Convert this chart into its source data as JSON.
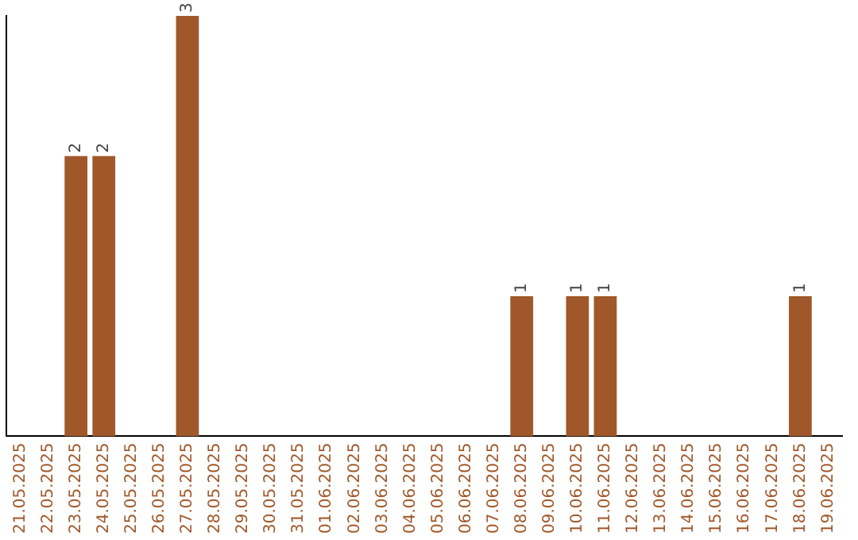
{
  "chart_data": {
    "type": "bar",
    "categories": [
      "21.05.2025",
      "22.05.2025",
      "23.05.2025",
      "24.05.2025",
      "25.05.2025",
      "26.05.2025",
      "27.05.2025",
      "28.05.2025",
      "29.05.2025",
      "30.05.2025",
      "31.05.2025",
      "01.06.2025",
      "02.06.2025",
      "03.06.2025",
      "04.06.2025",
      "05.06.2025",
      "06.06.2025",
      "07.06.2025",
      "08.06.2025",
      "09.06.2025",
      "10.06.2025",
      "11.06.2025",
      "12.06.2025",
      "13.06.2025",
      "14.06.2025",
      "15.06.2025",
      "16.06.2025",
      "17.06.2025",
      "18.06.2025",
      "19.06.2025"
    ],
    "values": [
      0,
      0,
      2,
      2,
      0,
      0,
      3,
      0,
      0,
      0,
      0,
      0,
      0,
      0,
      0,
      0,
      0,
      0,
      1,
      0,
      1,
      1,
      0,
      0,
      0,
      0,
      0,
      0,
      1,
      0
    ],
    "value_labels": [
      null,
      null,
      "2",
      "2",
      null,
      null,
      "3",
      null,
      null,
      null,
      null,
      null,
      null,
      null,
      null,
      null,
      null,
      null,
      "1",
      null,
      "1",
      "1",
      null,
      null,
      null,
      null,
      null,
      null,
      "1",
      null
    ],
    "color": "#a0582a",
    "grid": false,
    "legend": false,
    "tick_labels": "x"
  }
}
